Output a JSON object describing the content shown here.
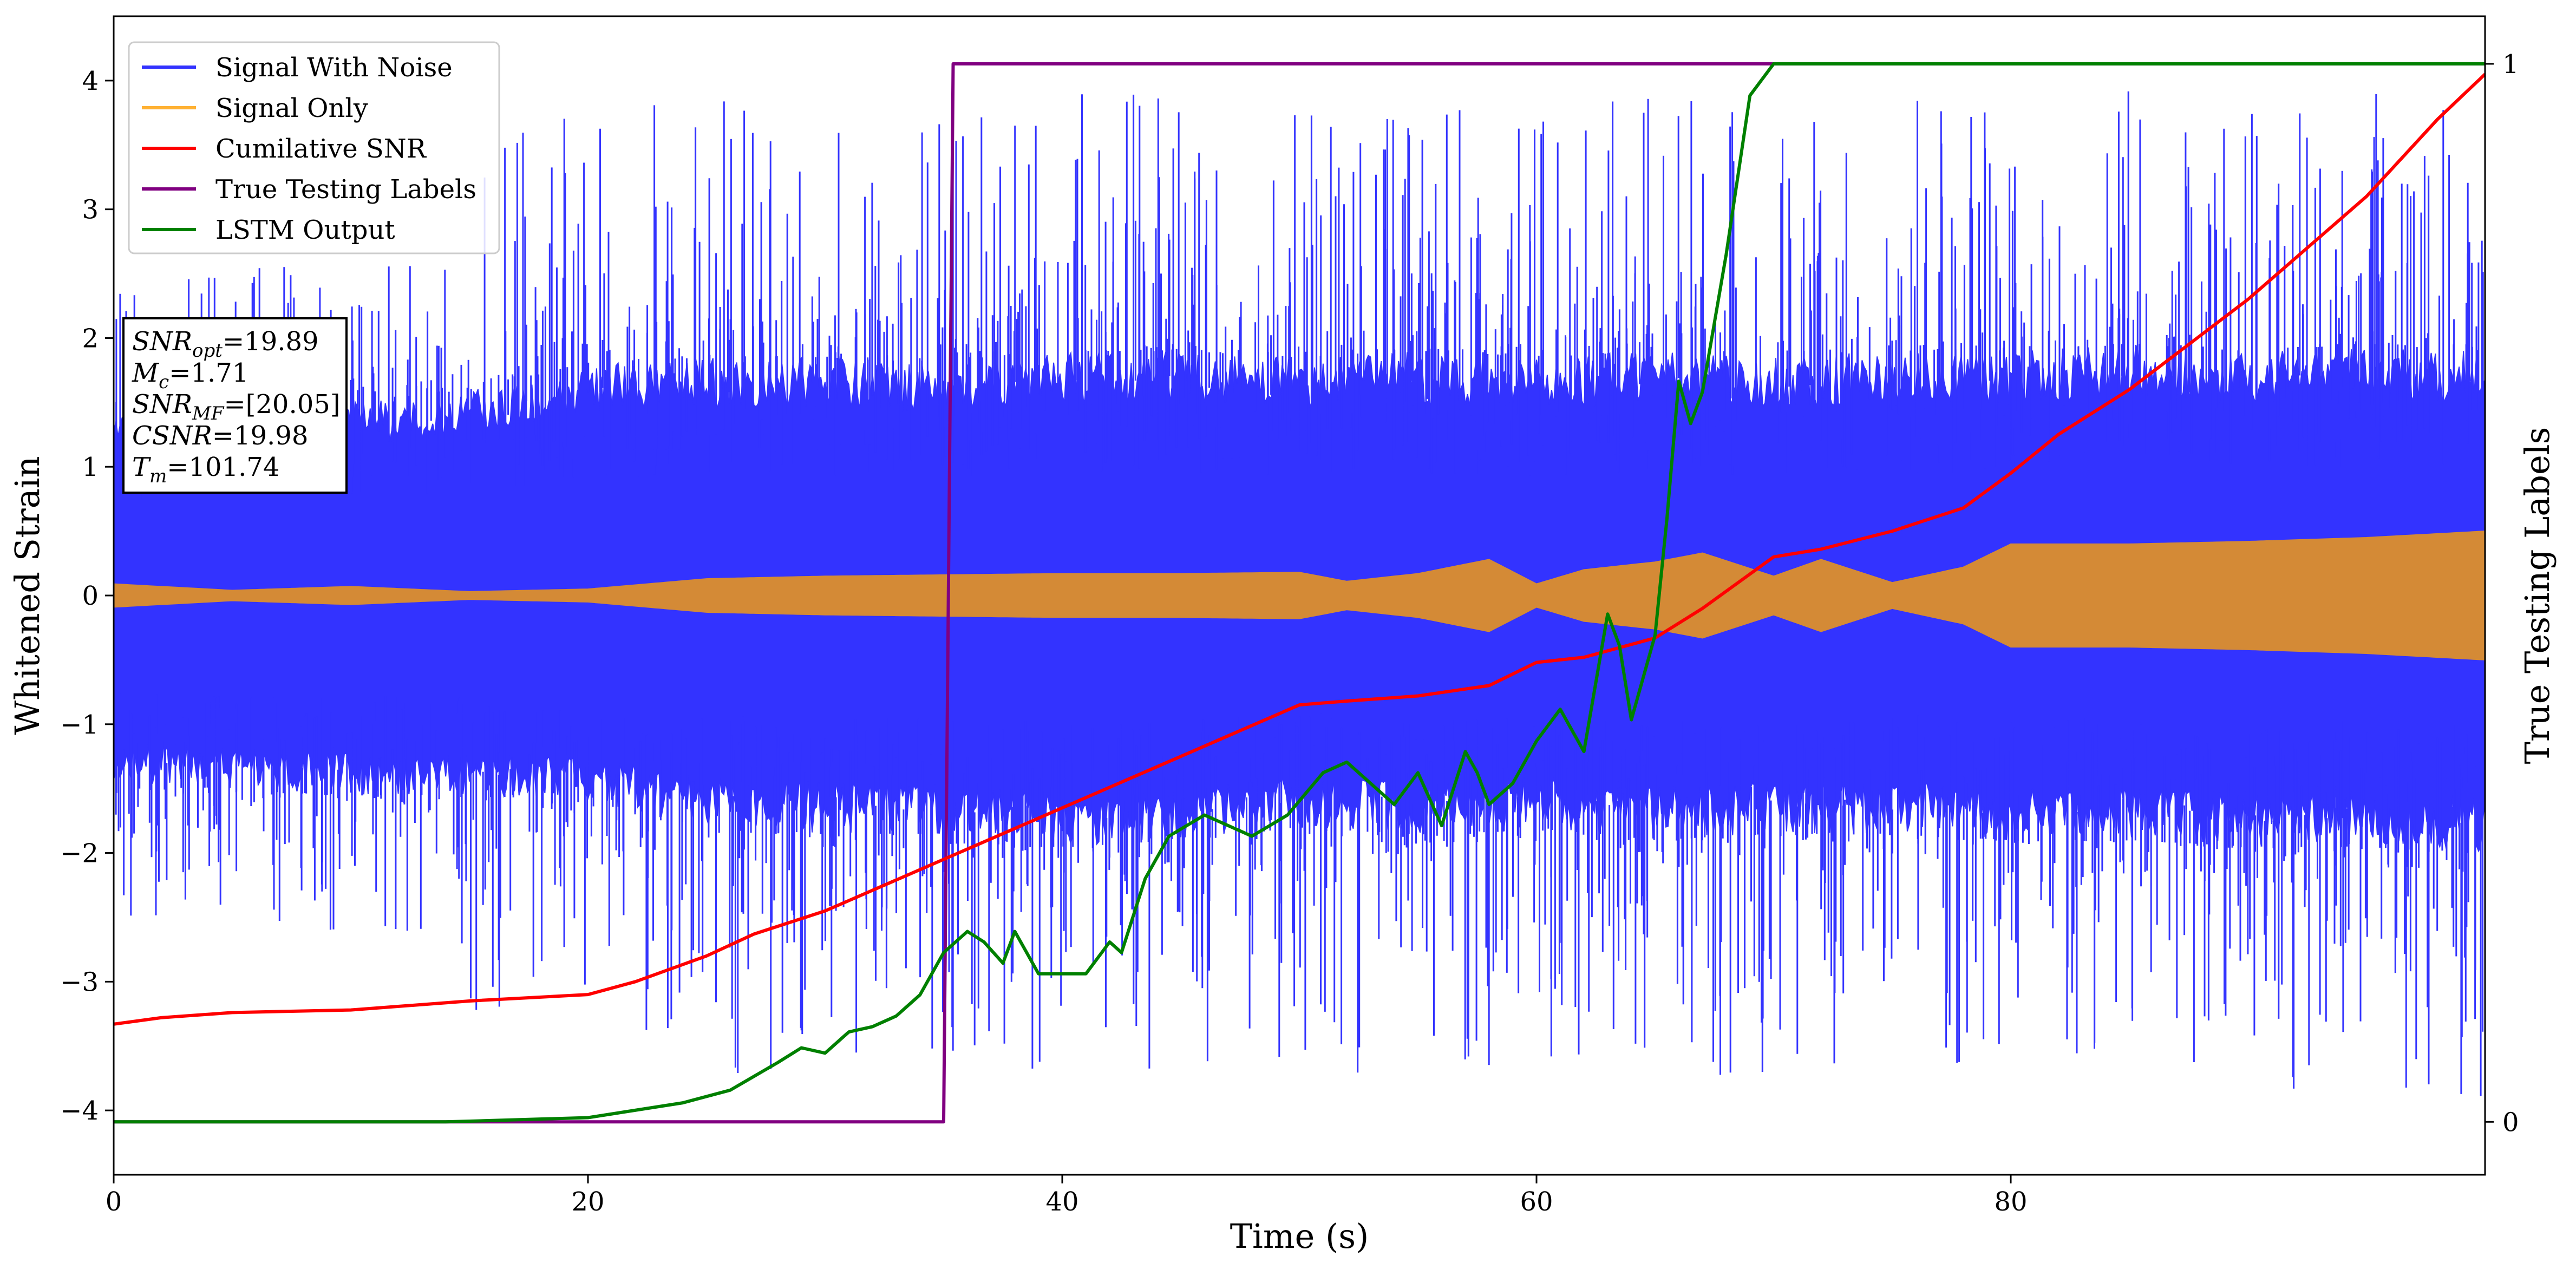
{
  "chart_data": {
    "type": "line",
    "title": "",
    "xlabel": "Time (s)",
    "ylabel": "Whitened Strain",
    "ylabel_right": "True Testing Labels",
    "xlim": [
      0,
      100
    ],
    "ylim": [
      -4.5,
      4.5
    ],
    "ylim_right": [
      -0.05,
      1.045
    ],
    "x_ticks": [
      0,
      20,
      40,
      60,
      80
    ],
    "y_ticks": [
      -4,
      -3,
      -2,
      -1,
      0,
      1,
      2,
      3,
      4
    ],
    "y_ticks_right": [
      0,
      1
    ],
    "grid": false,
    "legend_position": "top-left",
    "colors": {
      "signal_with_noise": "#3333ff",
      "signal_only": "#ffb133",
      "signal_overlap": "#d48a36",
      "cumulative_snr": "#ff0000",
      "true_labels": "#800080",
      "lstm_output": "#008000"
    },
    "series": [
      {
        "name": "Signal With Noise",
        "axis": "left",
        "representation": "noise band",
        "x": [
          0,
          5,
          10,
          15,
          20,
          25,
          30,
          35,
          40,
          45,
          50,
          55,
          60,
          65,
          70,
          75,
          80,
          85,
          90,
          95,
          100
        ],
        "y_upper": [
          1.45,
          1.5,
          1.5,
          1.6,
          1.8,
          1.85,
          1.85,
          1.8,
          1.9,
          1.9,
          1.85,
          1.9,
          1.85,
          1.9,
          1.85,
          1.9,
          1.9,
          1.95,
          1.9,
          1.95,
          1.9
        ],
        "y_lower": [
          -1.45,
          -1.5,
          -1.55,
          -1.55,
          -1.6,
          -1.8,
          -1.85,
          -1.85,
          -1.95,
          -1.9,
          -1.8,
          -1.85,
          -1.8,
          -1.9,
          -1.85,
          -1.85,
          -1.9,
          -1.9,
          -1.95,
          -1.95,
          -2.0
        ]
      },
      {
        "name": "Signal Only",
        "axis": "left",
        "representation": "oscillation envelope",
        "x": [
          0,
          5,
          10,
          15,
          20,
          25,
          30,
          35,
          40,
          45,
          50,
          52,
          55,
          58,
          60,
          62,
          65,
          67,
          70,
          72,
          75,
          78,
          80,
          85,
          90,
          95,
          100
        ],
        "amplitude": [
          0.09,
          0.04,
          0.07,
          0.03,
          0.05,
          0.13,
          0.15,
          0.16,
          0.17,
          0.17,
          0.18,
          0.11,
          0.17,
          0.28,
          0.09,
          0.2,
          0.26,
          0.33,
          0.15,
          0.28,
          0.1,
          0.22,
          0.4,
          0.4,
          0.42,
          0.45,
          0.5
        ]
      },
      {
        "name": "Cumilative SNR",
        "axis": "left",
        "x": [
          0,
          2,
          5,
          10,
          15,
          20,
          22,
          25,
          27,
          30,
          35,
          40,
          45,
          50,
          52,
          55,
          58,
          60,
          62,
          65,
          67,
          70,
          72,
          75,
          78,
          80,
          82,
          85,
          90,
          95,
          98,
          100
        ],
        "y": [
          -3.33,
          -3.28,
          -3.24,
          -3.22,
          -3.15,
          -3.1,
          -3.0,
          -2.8,
          -2.63,
          -2.45,
          -2.05,
          -1.65,
          -1.25,
          -0.85,
          -0.82,
          -0.78,
          -0.7,
          -0.52,
          -0.48,
          -0.33,
          -0.1,
          0.3,
          0.36,
          0.5,
          0.68,
          0.95,
          1.25,
          1.6,
          2.3,
          3.1,
          3.7,
          4.05
        ]
      },
      {
        "name": "True Testing Labels",
        "axis": "right",
        "x": [
          0,
          35,
          35.4,
          100
        ],
        "y": [
          0,
          0,
          1,
          1
        ]
      },
      {
        "name": "LSTM Output",
        "axis": "right",
        "x": [
          0,
          14,
          20,
          24,
          26,
          28,
          29,
          30,
          31,
          32,
          33,
          34,
          35,
          36,
          36.7,
          37.5,
          38,
          39,
          40,
          41,
          42,
          42.5,
          43.5,
          44.5,
          46,
          48,
          49.5,
          51,
          52,
          53,
          54,
          55,
          56,
          57,
          57.5,
          58,
          59,
          60,
          61,
          62,
          63,
          63.5,
          64,
          65,
          65.5,
          66,
          66.5,
          67,
          68,
          69,
          70,
          72,
          75,
          80,
          100
        ],
        "y": [
          0,
          0,
          0.004,
          0.018,
          0.03,
          0.056,
          0.07,
          0.065,
          0.085,
          0.09,
          0.1,
          0.12,
          0.16,
          0.18,
          0.17,
          0.15,
          0.18,
          0.14,
          0.14,
          0.14,
          0.17,
          0.16,
          0.23,
          0.27,
          0.29,
          0.27,
          0.29,
          0.33,
          0.34,
          0.32,
          0.3,
          0.33,
          0.28,
          0.35,
          0.33,
          0.3,
          0.32,
          0.36,
          0.39,
          0.35,
          0.48,
          0.45,
          0.38,
          0.46,
          0.57,
          0.7,
          0.66,
          0.69,
          0.82,
          0.97,
          1.0,
          1.0,
          1.0,
          1.0,
          1.0
        ]
      }
    ],
    "annotation_lines": [
      {
        "pre": "SNR",
        "sub": "opt",
        "post": "=19.89"
      },
      {
        "pre": "M",
        "sub": "c",
        "post": "=1.71"
      },
      {
        "pre": "SNR",
        "sub": "MF",
        "post": "=[20.05]"
      },
      {
        "pre": "CSNR",
        "sub": "",
        "post": "=19.98"
      },
      {
        "pre": "T",
        "sub": "m",
        "post": "=101.74"
      }
    ]
  }
}
